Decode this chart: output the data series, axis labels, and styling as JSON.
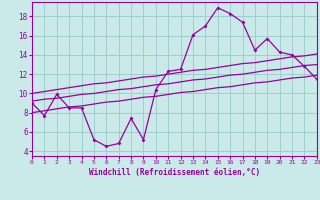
{
  "x": [
    0,
    1,
    2,
    3,
    4,
    5,
    6,
    7,
    8,
    9,
    10,
    11,
    12,
    13,
    14,
    15,
    16,
    17,
    18,
    19,
    20,
    21,
    22,
    23
  ],
  "y_main": [
    9.0,
    7.7,
    9.9,
    8.5,
    8.5,
    5.2,
    4.5,
    4.8,
    7.4,
    5.2,
    10.4,
    12.3,
    12.5,
    16.1,
    17.0,
    18.9,
    18.3,
    17.4,
    14.5,
    15.7,
    14.3,
    14.0,
    12.8,
    11.5
  ],
  "y_line1": [
    8.0,
    8.2,
    8.4,
    8.6,
    8.7,
    8.9,
    9.1,
    9.2,
    9.4,
    9.6,
    9.7,
    9.9,
    10.1,
    10.2,
    10.4,
    10.6,
    10.7,
    10.9,
    11.1,
    11.2,
    11.4,
    11.6,
    11.7,
    11.9
  ],
  "y_line2": [
    9.2,
    9.4,
    9.5,
    9.7,
    9.9,
    10.0,
    10.2,
    10.4,
    10.5,
    10.7,
    10.9,
    11.0,
    11.2,
    11.4,
    11.5,
    11.7,
    11.9,
    12.0,
    12.2,
    12.4,
    12.5,
    12.7,
    12.9,
    13.0
  ],
  "y_line3": [
    10.0,
    10.2,
    10.4,
    10.6,
    10.8,
    11.0,
    11.1,
    11.3,
    11.5,
    11.7,
    11.8,
    12.0,
    12.2,
    12.4,
    12.5,
    12.7,
    12.9,
    13.1,
    13.2,
    13.4,
    13.6,
    13.8,
    13.9,
    14.1
  ],
  "bg_color": "#caeaea",
  "line_color": "#990099",
  "grid_color": "#9ecece",
  "xlabel": "Windchill (Refroidissement éolien,°C)",
  "ylim": [
    3.5,
    19.5
  ],
  "xlim": [
    0,
    23
  ],
  "yticks": [
    4,
    6,
    8,
    10,
    12,
    14,
    16,
    18
  ],
  "xticks": [
    0,
    1,
    2,
    3,
    4,
    5,
    6,
    7,
    8,
    9,
    10,
    11,
    12,
    13,
    14,
    15,
    16,
    17,
    18,
    19,
    20,
    21,
    22,
    23
  ]
}
